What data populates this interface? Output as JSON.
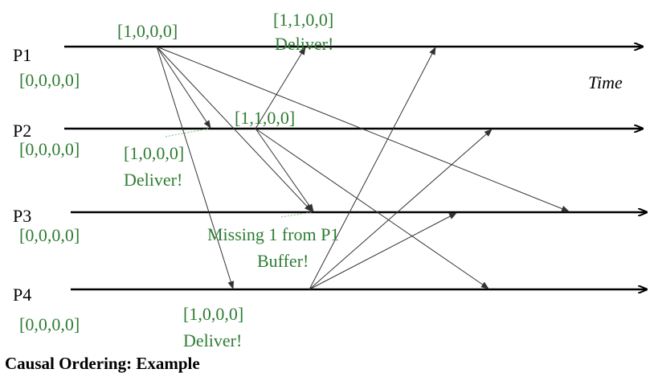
{
  "processes": [
    {
      "name": "P1",
      "initial_vector": "[0,0,0,0]"
    },
    {
      "name": "P2",
      "initial_vector": "[0,0,0,0]"
    },
    {
      "name": "P3",
      "initial_vector": "[0,0,0,0]"
    },
    {
      "name": "P4",
      "initial_vector": "[0,0,0,0]"
    }
  ],
  "events": {
    "p1_send": "[1,0,0,0]",
    "p1_deliver_vector": "[1,1,0,0]",
    "p1_deliver_note": "Deliver!",
    "p2_send": "[1,1,0,0]",
    "p2_deliver_vector": "[1,0,0,0]",
    "p2_deliver_note": "Deliver!",
    "p3_missing_note": "Missing 1 from P1",
    "p3_buffer_note": "Buffer!",
    "p4_deliver_vector": "[1,0,0,0]",
    "p4_deliver_note": "Deliver!"
  },
  "axis_label": "Time",
  "slide_title": "Causal Ordering: Example",
  "colors": {
    "vector_text": "#2e7d32",
    "timeline": "#000000"
  }
}
